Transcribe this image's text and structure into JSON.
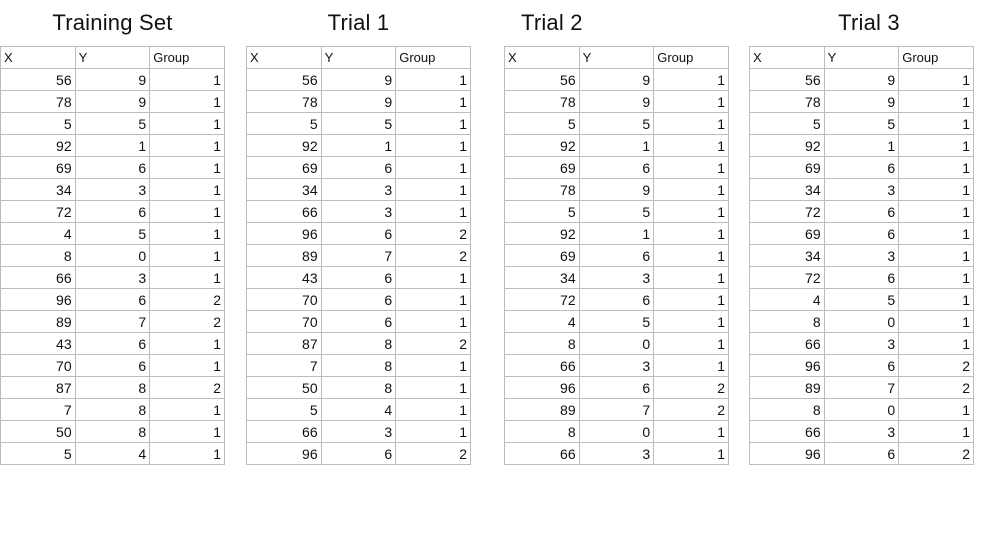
{
  "headers": [
    "X",
    "Y",
    "Group"
  ],
  "tables": [
    {
      "title": "Training Set",
      "rows": [
        [
          56,
          9,
          1
        ],
        [
          78,
          9,
          1
        ],
        [
          5,
          5,
          1
        ],
        [
          92,
          1,
          1
        ],
        [
          69,
          6,
          1
        ],
        [
          34,
          3,
          1
        ],
        [
          72,
          6,
          1
        ],
        [
          4,
          5,
          1
        ],
        [
          8,
          0,
          1
        ],
        [
          66,
          3,
          1
        ],
        [
          96,
          6,
          2
        ],
        [
          89,
          7,
          2
        ],
        [
          43,
          6,
          1
        ],
        [
          70,
          6,
          1
        ],
        [
          87,
          8,
          2
        ],
        [
          7,
          8,
          1
        ],
        [
          50,
          8,
          1
        ],
        [
          5,
          4,
          1
        ]
      ]
    },
    {
      "title": "Trial 1",
      "rows": [
        [
          56,
          9,
          1
        ],
        [
          78,
          9,
          1
        ],
        [
          5,
          5,
          1
        ],
        [
          92,
          1,
          1
        ],
        [
          69,
          6,
          1
        ],
        [
          34,
          3,
          1
        ],
        [
          66,
          3,
          1
        ],
        [
          96,
          6,
          2
        ],
        [
          89,
          7,
          2
        ],
        [
          43,
          6,
          1
        ],
        [
          70,
          6,
          1
        ],
        [
          70,
          6,
          1
        ],
        [
          87,
          8,
          2
        ],
        [
          7,
          8,
          1
        ],
        [
          50,
          8,
          1
        ],
        [
          5,
          4,
          1
        ],
        [
          66,
          3,
          1
        ],
        [
          96,
          6,
          2
        ]
      ]
    },
    {
      "title": "Trial 2",
      "rows": [
        [
          56,
          9,
          1
        ],
        [
          78,
          9,
          1
        ],
        [
          5,
          5,
          1
        ],
        [
          92,
          1,
          1
        ],
        [
          69,
          6,
          1
        ],
        [
          78,
          9,
          1
        ],
        [
          5,
          5,
          1
        ],
        [
          92,
          1,
          1
        ],
        [
          69,
          6,
          1
        ],
        [
          34,
          3,
          1
        ],
        [
          72,
          6,
          1
        ],
        [
          4,
          5,
          1
        ],
        [
          8,
          0,
          1
        ],
        [
          66,
          3,
          1
        ],
        [
          96,
          6,
          2
        ],
        [
          89,
          7,
          2
        ],
        [
          8,
          0,
          1
        ],
        [
          66,
          3,
          1
        ]
      ]
    },
    {
      "title": "Trial 3",
      "rows": [
        [
          56,
          9,
          1
        ],
        [
          78,
          9,
          1
        ],
        [
          5,
          5,
          1
        ],
        [
          92,
          1,
          1
        ],
        [
          69,
          6,
          1
        ],
        [
          34,
          3,
          1
        ],
        [
          72,
          6,
          1
        ],
        [
          69,
          6,
          1
        ],
        [
          34,
          3,
          1
        ],
        [
          72,
          6,
          1
        ],
        [
          4,
          5,
          1
        ],
        [
          8,
          0,
          1
        ],
        [
          66,
          3,
          1
        ],
        [
          96,
          6,
          2
        ],
        [
          89,
          7,
          2
        ],
        [
          8,
          0,
          1
        ],
        [
          66,
          3,
          1
        ],
        [
          96,
          6,
          2
        ]
      ]
    }
  ]
}
